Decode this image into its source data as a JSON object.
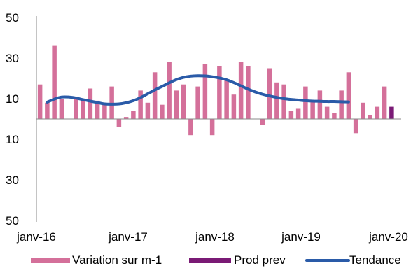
{
  "chart_data": {
    "type": "bar",
    "x_ticks": [
      "janv-16",
      "janv-17",
      "janv-18",
      "janv-19",
      "janv-20"
    ],
    "y_ticks": [
      {
        "value": 50,
        "label": "50"
      },
      {
        "value": 30,
        "label": "30"
      },
      {
        "value": 10,
        "label": "10"
      },
      {
        "value": -10,
        "label": "10"
      },
      {
        "value": -30,
        "label": "30"
      },
      {
        "value": -50,
        "label": "50"
      }
    ],
    "ylim": [
      -50,
      50
    ],
    "grid": false,
    "legend_position": "bottom",
    "series": [
      {
        "name": "Variation sur m-1",
        "kind": "bar",
        "color": "#d4709a",
        "start_index": 0,
        "values": [
          17,
          8,
          36,
          10,
          0,
          10,
          10,
          15,
          9,
          8,
          16,
          -4,
          1,
          4,
          14,
          8,
          23,
          7,
          28,
          14,
          17,
          -8,
          16,
          27,
          -8,
          26,
          19,
          12,
          28,
          26,
          0,
          -3,
          25,
          18,
          17,
          4,
          5,
          16,
          9,
          14,
          6,
          3,
          14,
          23,
          -7,
          8,
          2,
          6,
          16
        ]
      },
      {
        "name": "Prod prev",
        "kind": "bar",
        "color": "#7a1a75",
        "start_index": 49,
        "values": [
          6
        ]
      },
      {
        "name": "Tendance",
        "kind": "line",
        "color": "#2a5ba8",
        "start_index": 1,
        "values": [
          8.3,
          9.8,
          10.8,
          10.8,
          10.3,
          9.5,
          8.8,
          8.1,
          7.4,
          7.3,
          7.4,
          8.0,
          9.0,
          10.5,
          12.4,
          14.3,
          16.0,
          17.8,
          19.4,
          20.5,
          21.1,
          21.3,
          21.2,
          20.8,
          20.2,
          19.3,
          17.9,
          16.3,
          14.7,
          13.3,
          12.2,
          11.3,
          10.6,
          10.0,
          9.6,
          9.3,
          9.0,
          8.8,
          8.7,
          8.6,
          8.6,
          8.5,
          8.4
        ]
      }
    ]
  }
}
